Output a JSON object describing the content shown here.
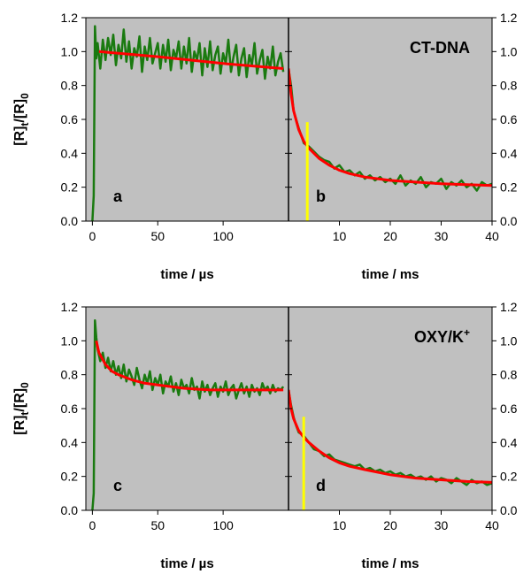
{
  "colors": {
    "panel_background": "#c0c0c0",
    "data_trace": "#1a7a10",
    "fit_curve": "#ff0000",
    "marker_line": "#ffff00"
  },
  "chart_data": [
    {
      "type": "line",
      "row": "top",
      "title": "",
      "ylabel": {
        "main": "[R]",
        "sub1": "t",
        "mid": "/[R]",
        "sub2": "0"
      },
      "annotation": {
        "main": "CT-DNA",
        "sup": ""
      },
      "ylim": [
        0,
        1.2
      ],
      "yticks": [
        "0.0",
        "0.2",
        "0.4",
        "0.6",
        "0.8",
        "1.0",
        "1.2"
      ],
      "left": {
        "label": "a",
        "xlabel": "time / µs",
        "xlim": [
          -5,
          150
        ],
        "xticks": [
          "0",
          "50",
          "100"
        ],
        "series": [
          {
            "kind": "data",
            "x": [
              0,
              1,
              2,
              3,
              4,
              6,
              8,
              10,
              12,
              14,
              16,
              18,
              20,
              22,
              24,
              26,
              28,
              30,
              32,
              34,
              36,
              38,
              40,
              42,
              44,
              46,
              48,
              50,
              52,
              54,
              56,
              58,
              60,
              62,
              64,
              66,
              68,
              70,
              72,
              74,
              76,
              78,
              80,
              82,
              84,
              86,
              88,
              90,
              92,
              94,
              96,
              98,
              100,
              102,
              104,
              106,
              108,
              110,
              112,
              114,
              116,
              118,
              120,
              122,
              124,
              126,
              128,
              130,
              132,
              134,
              136,
              138,
              140,
              142,
              144,
              146
            ],
            "y": [
              0.0,
              0.15,
              1.15,
              0.96,
              1.05,
              0.9,
              1.07,
              0.95,
              1.08,
              0.98,
              1.1,
              0.92,
              1.04,
              0.96,
              1.13,
              0.94,
              1.06,
              0.9,
              1.02,
              0.97,
              1.09,
              0.88,
              1.03,
              0.95,
              1.08,
              0.93,
              0.99,
              1.05,
              0.9,
              1.04,
              0.94,
              1.07,
              0.89,
              1.01,
              0.96,
              1.06,
              0.9,
              1.03,
              0.93,
              1.08,
              0.88,
              1.0,
              0.95,
              1.05,
              0.86,
              1.02,
              0.91,
              1.06,
              0.89,
              0.98,
              1.03,
              0.87,
              0.99,
              0.93,
              1.07,
              0.88,
              0.97,
              1.04,
              0.86,
              0.96,
              1.02,
              0.85,
              0.98,
              0.92,
              1.05,
              0.87,
              0.95,
              1.01,
              0.84,
              0.97,
              0.9,
              1.03,
              0.86,
              0.94,
              0.99,
              0.88
            ]
          },
          {
            "kind": "fit",
            "x": [
              5,
              50,
              100,
              146
            ],
            "y": [
              1.0,
              0.97,
              0.93,
              0.9
            ]
          }
        ]
      },
      "right": {
        "label": "b",
        "xlabel": "time / ms",
        "xlim": [
          0,
          40
        ],
        "xticks": [
          "10",
          "20",
          "30",
          "40"
        ],
        "marker_x": 1.6,
        "series": [
          {
            "kind": "data",
            "x": [
              0,
              0.5,
              1,
              1.5,
              2,
              3,
              4,
              5,
              6,
              7,
              8,
              9,
              10,
              11,
              12,
              13,
              14,
              15,
              16,
              17,
              18,
              19,
              20,
              21,
              22,
              23,
              24,
              25,
              26,
              27,
              28,
              29,
              30,
              31,
              32,
              33,
              34,
              35,
              36,
              37,
              38,
              39,
              40
            ],
            "y": [
              0.9,
              0.8,
              0.65,
              0.6,
              0.55,
              0.46,
              0.44,
              0.41,
              0.38,
              0.36,
              0.35,
              0.31,
              0.33,
              0.29,
              0.3,
              0.27,
              0.29,
              0.25,
              0.27,
              0.24,
              0.26,
              0.23,
              0.25,
              0.22,
              0.27,
              0.21,
              0.24,
              0.22,
              0.26,
              0.2,
              0.23,
              0.22,
              0.25,
              0.19,
              0.23,
              0.21,
              0.24,
              0.2,
              0.22,
              0.18,
              0.23,
              0.21,
              0.22
            ]
          },
          {
            "kind": "fit",
            "x": [
              0,
              0.5,
              1,
              2,
              3,
              4,
              6,
              8,
              10,
              12,
              15,
              20,
              25,
              30,
              35,
              40
            ],
            "y": [
              0.9,
              0.75,
              0.65,
              0.54,
              0.47,
              0.43,
              0.37,
              0.33,
              0.3,
              0.28,
              0.26,
              0.24,
              0.23,
              0.22,
              0.215,
              0.21
            ]
          }
        ]
      }
    },
    {
      "type": "line",
      "row": "bottom",
      "title": "",
      "ylabel": {
        "main": "[R]",
        "sub1": "t",
        "mid": "/[R]",
        "sub2": "0"
      },
      "annotation": {
        "main": "OXY/K",
        "sup": "+"
      },
      "ylim": [
        0,
        1.2
      ],
      "yticks": [
        "0.0",
        "0.2",
        "0.4",
        "0.6",
        "0.8",
        "1.0",
        "1.2"
      ],
      "left": {
        "label": "c",
        "xlabel": "time / µs",
        "xlim": [
          -5,
          150
        ],
        "xticks": [
          "0",
          "50",
          "100"
        ],
        "series": [
          {
            "kind": "data",
            "x": [
              0,
              1,
              2,
              3,
              4,
              6,
              8,
              10,
              12,
              14,
              16,
              18,
              20,
              22,
              24,
              26,
              28,
              30,
              32,
              34,
              36,
              38,
              40,
              42,
              44,
              46,
              48,
              50,
              52,
              54,
              56,
              58,
              60,
              62,
              64,
              66,
              68,
              70,
              72,
              74,
              76,
              78,
              80,
              82,
              84,
              86,
              88,
              90,
              92,
              94,
              96,
              98,
              100,
              102,
              104,
              106,
              108,
              110,
              112,
              114,
              116,
              118,
              120,
              122,
              124,
              126,
              128,
              130,
              132,
              134,
              136,
              138,
              140,
              142,
              144,
              146
            ],
            "y": [
              0.0,
              0.1,
              1.12,
              1.02,
              0.95,
              0.88,
              0.93,
              0.84,
              0.9,
              0.82,
              0.88,
              0.8,
              0.85,
              0.78,
              0.86,
              0.76,
              0.83,
              0.79,
              0.74,
              0.84,
              0.77,
              0.72,
              0.8,
              0.75,
              0.82,
              0.71,
              0.78,
              0.74,
              0.8,
              0.69,
              0.76,
              0.73,
              0.79,
              0.7,
              0.75,
              0.68,
              0.77,
              0.72,
              0.74,
              0.69,
              0.78,
              0.71,
              0.73,
              0.66,
              0.76,
              0.7,
              0.74,
              0.68,
              0.72,
              0.75,
              0.67,
              0.73,
              0.7,
              0.76,
              0.68,
              0.72,
              0.74,
              0.66,
              0.71,
              0.75,
              0.69,
              0.73,
              0.67,
              0.74,
              0.7,
              0.72,
              0.68,
              0.75,
              0.71,
              0.73,
              0.69,
              0.74,
              0.7,
              0.72,
              0.71,
              0.73
            ]
          },
          {
            "kind": "fit",
            "x": [
              3,
              5,
              10,
              15,
              20,
              30,
              40,
              50,
              60,
              70,
              80,
              90,
              100,
              120,
              146
            ],
            "y": [
              1.0,
              0.93,
              0.86,
              0.82,
              0.8,
              0.77,
              0.75,
              0.74,
              0.73,
              0.72,
              0.715,
              0.71,
              0.71,
              0.71,
              0.71
            ]
          }
        ]
      },
      "right": {
        "label": "d",
        "xlabel": "time / ms",
        "xlim": [
          0,
          40
        ],
        "xticks": [
          "10",
          "20",
          "30",
          "40"
        ],
        "marker_x": 0.9,
        "series": [
          {
            "kind": "data",
            "x": [
              0,
              0.5,
              1,
              1.5,
              2,
              3,
              4,
              5,
              6,
              7,
              8,
              9,
              10,
              11,
              12,
              13,
              14,
              15,
              16,
              17,
              18,
              19,
              20,
              21,
              22,
              23,
              24,
              25,
              26,
              27,
              28,
              29,
              30,
              31,
              32,
              33,
              34,
              35,
              36,
              37,
              38,
              39,
              40
            ],
            "y": [
              0.71,
              0.62,
              0.55,
              0.5,
              0.46,
              0.44,
              0.4,
              0.36,
              0.35,
              0.32,
              0.33,
              0.3,
              0.29,
              0.28,
              0.27,
              0.26,
              0.27,
              0.24,
              0.25,
              0.23,
              0.24,
              0.22,
              0.23,
              0.21,
              0.22,
              0.2,
              0.21,
              0.19,
              0.2,
              0.18,
              0.2,
              0.17,
              0.19,
              0.18,
              0.16,
              0.19,
              0.17,
              0.15,
              0.18,
              0.16,
              0.17,
              0.15,
              0.16
            ]
          },
          {
            "kind": "fit",
            "x": [
              0,
              0.5,
              1,
              2,
              3,
              4,
              6,
              8,
              10,
              12,
              15,
              20,
              25,
              30,
              35,
              40
            ],
            "y": [
              0.71,
              0.6,
              0.54,
              0.47,
              0.43,
              0.4,
              0.35,
              0.31,
              0.28,
              0.26,
              0.24,
              0.21,
              0.19,
              0.18,
              0.17,
              0.165
            ]
          }
        ]
      }
    }
  ]
}
